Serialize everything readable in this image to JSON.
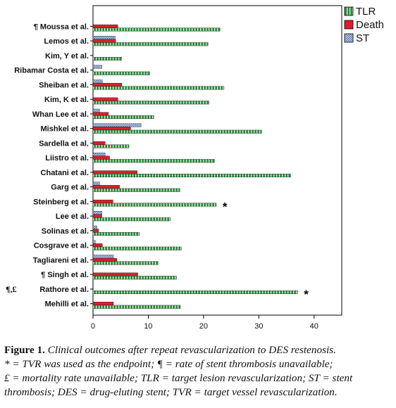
{
  "chart_data": {
    "type": "bar",
    "orientation": "horizontal",
    "categories": [
      "¶ Moussa et al.",
      "Lemos et al.",
      "Kim, Y et al.",
      "Ribamar Costa et al.",
      "Sheiban et al.",
      "Kim, K et al.",
      "Whan Lee et al.",
      "Mishkel et al.",
      "Sardella et al.",
      "Liistro et al.",
      "Chatani et al.",
      "Garg et al.",
      "Steinberg et al.",
      "Lee et al.",
      "Solinas et al.",
      "Cosgrave et al.",
      "Tagliareni et al.",
      "¶ Singh et al.",
      "Rathore et al.",
      "Mehilli et al."
    ],
    "category_prefix": {
      "Rathore et al.": "¶,£"
    },
    "series": [
      {
        "name": "TLR",
        "color": "#2e8b3e",
        "values": [
          23.0,
          20.8,
          5.2,
          10.3,
          23.7,
          21.0,
          11.0,
          30.5,
          6.5,
          22.0,
          35.8,
          15.7,
          22.3,
          14.0,
          8.4,
          16.0,
          11.8,
          15.1,
          37.0,
          15.8
        ]
      },
      {
        "name": "Death",
        "color": "#d8202c",
        "values": [
          4.5,
          4.1,
          0.0,
          0.0,
          5.2,
          4.5,
          2.8,
          6.8,
          2.2,
          3.0,
          8.0,
          4.8,
          3.6,
          1.6,
          1.0,
          1.7,
          4.3,
          8.1,
          0.0,
          3.7
        ]
      },
      {
        "name": "ST",
        "color": "#6f8fbf",
        "values": [
          0.0,
          4.0,
          0.0,
          1.6,
          1.7,
          0.0,
          1.2,
          8.7,
          0.0,
          2.2,
          0.0,
          1.2,
          0.0,
          1.6,
          0.7,
          0.4,
          3.7,
          0.0,
          0.0,
          0.0
        ]
      }
    ],
    "xlim": [
      0,
      45
    ],
    "xticks": [
      0,
      10,
      20,
      30,
      40
    ],
    "markers": [
      {
        "category": "Steinberg et al.",
        "symbol": "*"
      },
      {
        "category": "Rathore et al.",
        "symbol": "*"
      }
    ],
    "legend_position": "top-right"
  },
  "caption": {
    "label": "Figure 1.",
    "title": "Clinical outcomes after repeat revascularization to DES restenosis.",
    "line2": "* = TVR was used as the endpoint; ¶ = rate of stent thrombosis unavailable;",
    "line3": "£ = mortality rate unavailable; TLR = target lesion revascularization; ST = stent",
    "line4": "thrombosis; DES = drug-eluting stent; TVR = target vessel revascularization."
  }
}
